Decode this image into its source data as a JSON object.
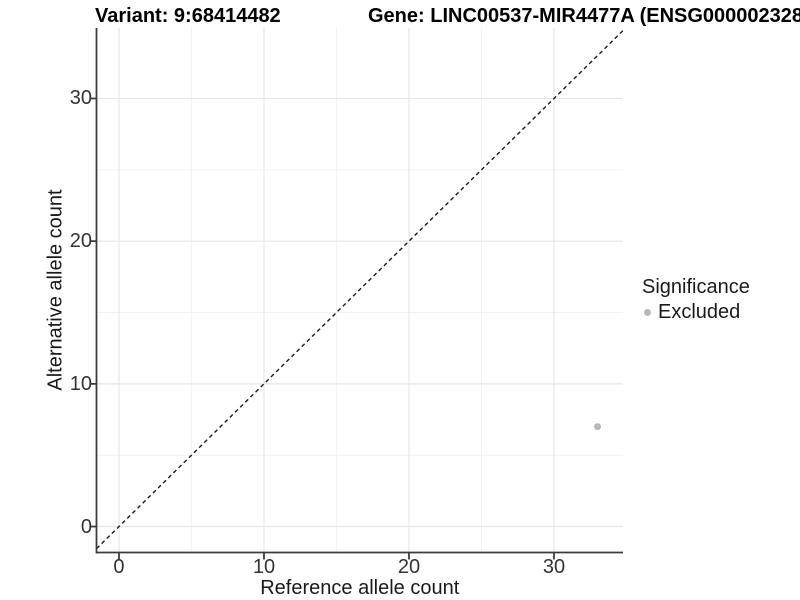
{
  "header": {
    "variant_title": "Variant: 9:68414482",
    "gene_title": "Gene: LINC00537-MIR4477A (ENSG000002328"
  },
  "chart_data": {
    "type": "scatter",
    "xlabel": "Reference allele count",
    "ylabel": "Alternative allele count",
    "xlim": [
      -1.55,
      34.76
    ],
    "ylim": [
      -1.82,
      34.94
    ],
    "x_ticks": [
      0,
      10,
      20,
      30
    ],
    "y_ticks": [
      0,
      10,
      20,
      30
    ],
    "x_minor_ticks": [
      5,
      15,
      25
    ],
    "y_minor_ticks": [
      5,
      15,
      25
    ],
    "grid": true,
    "legend_position": "right",
    "reference_line": {
      "slope": 1,
      "intercept": 0,
      "style": "dashed"
    },
    "series": [
      {
        "name": "Excluded",
        "points": [
          {
            "x": 33,
            "y": 7
          }
        ]
      }
    ]
  },
  "legend": {
    "title": "Significance",
    "items": [
      {
        "label": "Excluded",
        "color": "#b8b8b8"
      }
    ]
  },
  "colors": {
    "point": "#b8b8b8",
    "axis_line": "#3c3c3c",
    "tick_mark": "#3c3c3c",
    "grid_major": "#e6e6e6",
    "grid_minor": "#f2f2f2",
    "dashed_line": "#1a1a1a",
    "title_text": "#000000",
    "axis_text": "#333333"
  }
}
